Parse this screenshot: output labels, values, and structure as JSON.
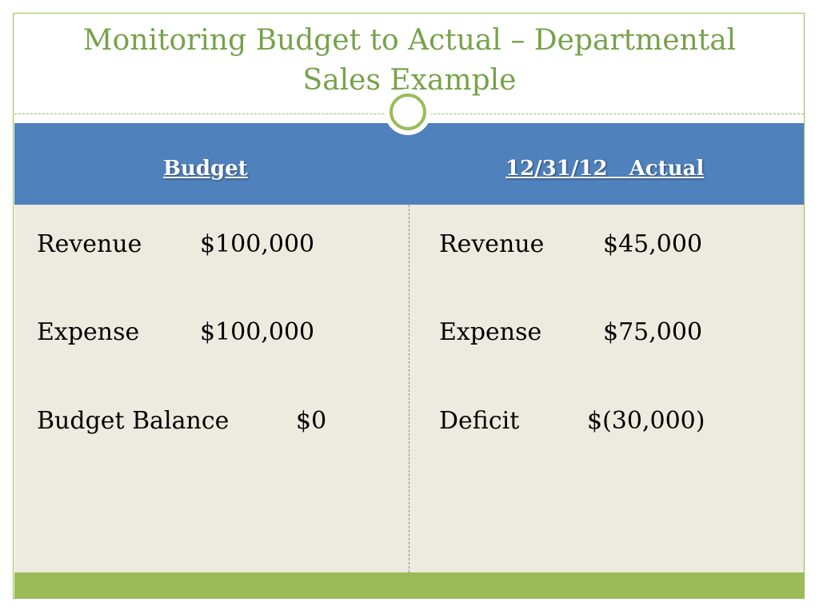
{
  "title": {
    "line1": "Monitoring Budget to Actual – Departmental",
    "line2": "Sales Example"
  },
  "columns": {
    "budget_header": "Budget",
    "actual_header": "12/31/12   Actual"
  },
  "budget": {
    "revenue_label": "Revenue",
    "revenue_value": "$100,000",
    "expense_label": "Expense",
    "expense_value": "$100,000",
    "balance_label": "Budget Balance",
    "balance_value": "$0"
  },
  "actual": {
    "revenue_label": "Revenue",
    "revenue_value": "$45,000",
    "expense_label": "Expense",
    "expense_value": "$75,000",
    "deficit_label": "Deficit",
    "deficit_value": "$(30,000)"
  },
  "colors": {
    "accent_green": "#9bbb59",
    "title_green": "#77a24a",
    "header_blue": "#4f81bd",
    "body_beige": "#edeae0"
  }
}
